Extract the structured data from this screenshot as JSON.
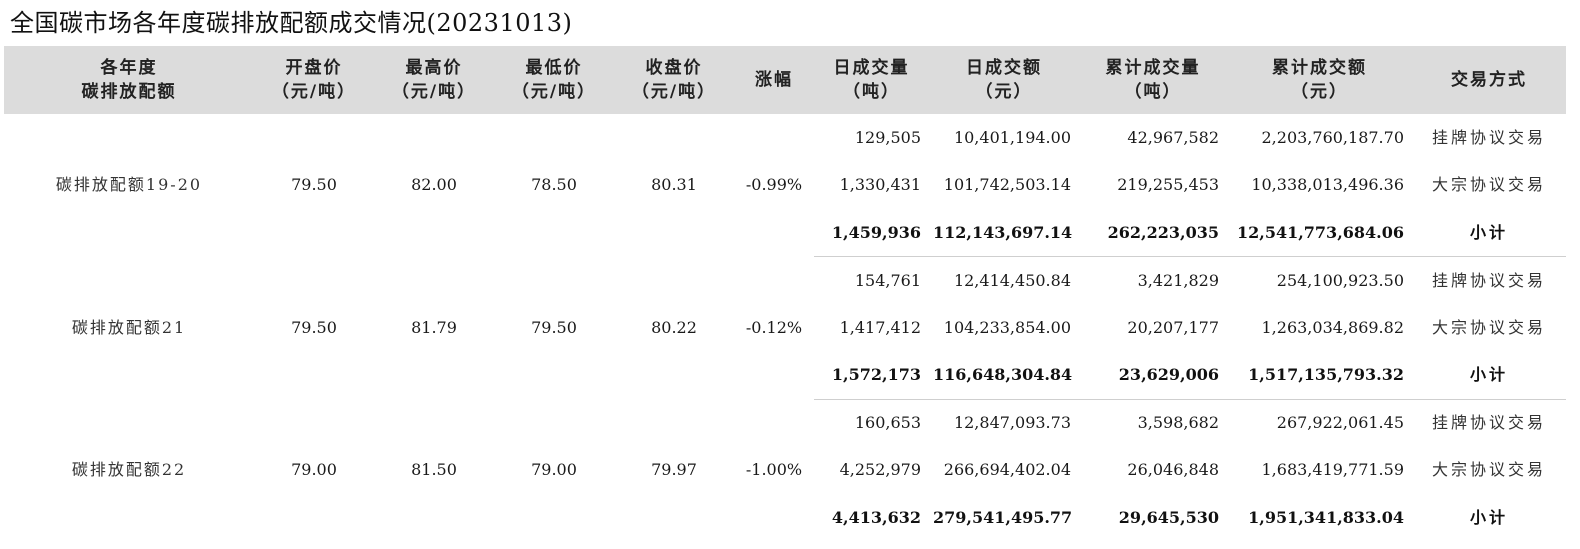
{
  "title": "全国碳市场各年度碳排放配额成交情况(20231013)",
  "columns": [
    {
      "lines": [
        "各年度",
        "碳排放配额"
      ]
    },
    {
      "lines": [
        "开盘价",
        "（元/吨）"
      ]
    },
    {
      "lines": [
        "最高价",
        "（元/吨）"
      ]
    },
    {
      "lines": [
        "最低价",
        "（元/吨）"
      ]
    },
    {
      "lines": [
        "收盘价",
        "（元/吨）"
      ]
    },
    {
      "lines": [
        "涨幅"
      ]
    },
    {
      "lines": [
        "日成交量",
        "（吨）"
      ]
    },
    {
      "lines": [
        "日成交额",
        "（元）"
      ]
    },
    {
      "lines": [
        "累计成交量",
        "（吨）"
      ]
    },
    {
      "lines": [
        "累计成交额",
        "（元）"
      ]
    },
    {
      "lines": [
        "交易方式"
      ]
    }
  ],
  "groups": [
    {
      "name": "碳排放配额19-20",
      "open": "79.50",
      "high": "82.00",
      "low": "78.50",
      "close": "80.31",
      "change": "-0.99%",
      "rows": [
        {
          "daily_volume": "129,505",
          "daily_amount": "10,401,194.00",
          "cum_volume": "42,967,582",
          "cum_amount": "2,203,760,187.70",
          "method": "挂牌协议交易"
        },
        {
          "daily_volume": "1,330,431",
          "daily_amount": "101,742,503.14",
          "cum_volume": "219,255,453",
          "cum_amount": "10,338,013,496.36",
          "method": "大宗协议交易"
        },
        {
          "daily_volume": "1,459,936",
          "daily_amount": "112,143,697.14",
          "cum_volume": "262,223,035",
          "cum_amount": "12,541,773,684.06",
          "method": "小计"
        }
      ]
    },
    {
      "name": "碳排放配额21",
      "open": "79.50",
      "high": "81.79",
      "low": "79.50",
      "close": "80.22",
      "change": "-0.12%",
      "rows": [
        {
          "daily_volume": "154,761",
          "daily_amount": "12,414,450.84",
          "cum_volume": "3,421,829",
          "cum_amount": "254,100,923.50",
          "method": "挂牌协议交易"
        },
        {
          "daily_volume": "1,417,412",
          "daily_amount": "104,233,854.00",
          "cum_volume": "20,207,177",
          "cum_amount": "1,263,034,869.82",
          "method": "大宗协议交易"
        },
        {
          "daily_volume": "1,572,173",
          "daily_amount": "116,648,304.84",
          "cum_volume": "23,629,006",
          "cum_amount": "1,517,135,793.32",
          "method": "小计"
        }
      ]
    },
    {
      "name": "碳排放配额22",
      "open": "79.00",
      "high": "81.50",
      "low": "79.00",
      "close": "79.97",
      "change": "-1.00%",
      "rows": [
        {
          "daily_volume": "160,653",
          "daily_amount": "12,847,093.73",
          "cum_volume": "3,598,682",
          "cum_amount": "267,922,061.45",
          "method": "挂牌协议交易"
        },
        {
          "daily_volume": "4,252,979",
          "daily_amount": "266,694,402.04",
          "cum_volume": "26,046,848",
          "cum_amount": "1,683,419,771.59",
          "method": "大宗协议交易"
        },
        {
          "daily_volume": "4,413,632",
          "daily_amount": "279,541,495.77",
          "cum_volume": "29,645,530",
          "cum_amount": "1,951,341,833.04",
          "method": "小计"
        }
      ]
    }
  ]
}
